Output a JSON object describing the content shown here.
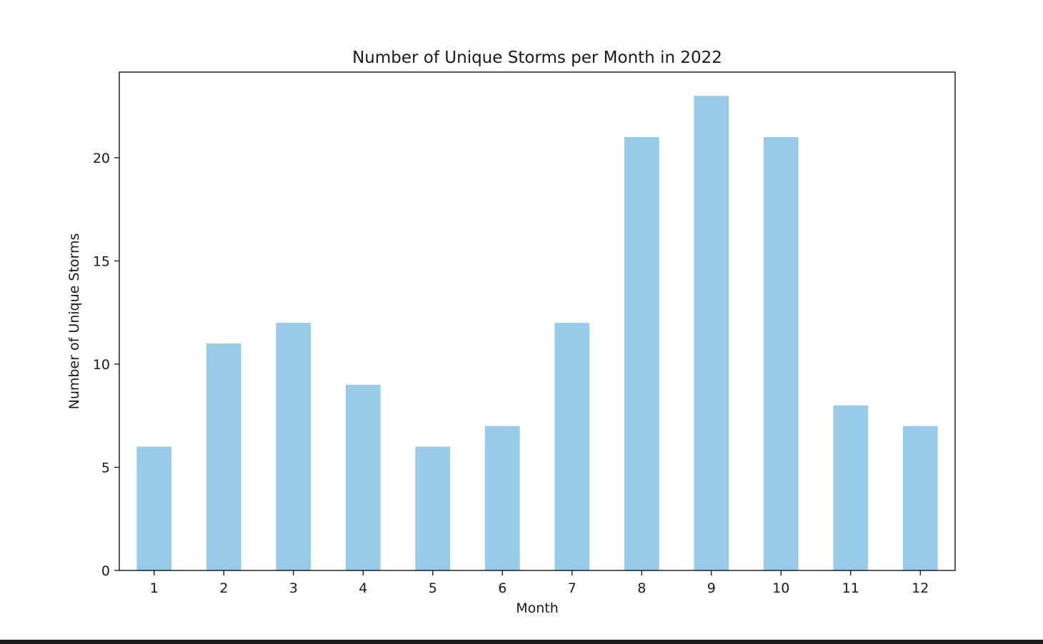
{
  "chart_data": {
    "type": "bar",
    "title": "Number of Unique Storms per Month in 2022",
    "xlabel": "Month",
    "ylabel": "Number of Unique Storms",
    "categories": [
      "1",
      "2",
      "3",
      "4",
      "5",
      "6",
      "7",
      "8",
      "9",
      "10",
      "11",
      "12"
    ],
    "values": [
      6,
      11,
      12,
      9,
      6,
      7,
      12,
      21,
      23,
      21,
      8,
      7
    ],
    "ylim": [
      0,
      24.15
    ],
    "yticks": [
      0,
      5,
      10,
      15,
      20
    ],
    "bar_color": "#98cbe8",
    "grid": false,
    "legend": "none"
  }
}
